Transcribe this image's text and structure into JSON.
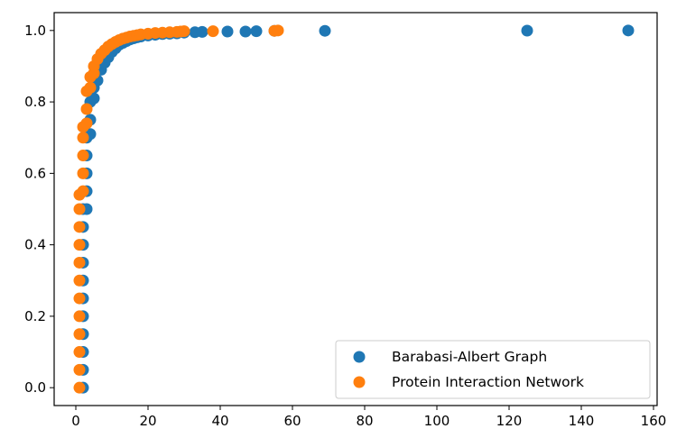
{
  "chart_data": {
    "type": "scatter",
    "title": "",
    "xlabel": "",
    "ylabel": "",
    "xlim": [
      -6,
      161
    ],
    "ylim": [
      -0.05,
      1.05
    ],
    "xticks": [
      0,
      20,
      40,
      60,
      80,
      100,
      120,
      140,
      160
    ],
    "yticks": [
      0.0,
      0.2,
      0.4,
      0.6,
      0.8,
      1.0
    ],
    "grid": false,
    "legend_position": "lower-right",
    "series": [
      {
        "name": "Barabasi-Albert Graph",
        "color": "#1f77b4",
        "points": [
          [
            2,
            0.0
          ],
          [
            2,
            0.05
          ],
          [
            2,
            0.1
          ],
          [
            2,
            0.15
          ],
          [
            2,
            0.2
          ],
          [
            2,
            0.25
          ],
          [
            2,
            0.3
          ],
          [
            2,
            0.35
          ],
          [
            2,
            0.4
          ],
          [
            2,
            0.45
          ],
          [
            2,
            0.5
          ],
          [
            3,
            0.5
          ],
          [
            3,
            0.55
          ],
          [
            3,
            0.6
          ],
          [
            3,
            0.65
          ],
          [
            3,
            0.7
          ],
          [
            4,
            0.71
          ],
          [
            4,
            0.75
          ],
          [
            4,
            0.8
          ],
          [
            5,
            0.81
          ],
          [
            5,
            0.84
          ],
          [
            6,
            0.86
          ],
          [
            7,
            0.89
          ],
          [
            8,
            0.91
          ],
          [
            9,
            0.925
          ],
          [
            10,
            0.94
          ],
          [
            11,
            0.95
          ],
          [
            12,
            0.96
          ],
          [
            13,
            0.965
          ],
          [
            14,
            0.97
          ],
          [
            15,
            0.975
          ],
          [
            16,
            0.978
          ],
          [
            17,
            0.981
          ],
          [
            18,
            0.983
          ],
          [
            20,
            0.986
          ],
          [
            22,
            0.988
          ],
          [
            24,
            0.99
          ],
          [
            26,
            0.991
          ],
          [
            28,
            0.992
          ],
          [
            30,
            0.994
          ],
          [
            33,
            0.995
          ],
          [
            35,
            0.996
          ],
          [
            42,
            0.997
          ],
          [
            47,
            0.997
          ],
          [
            50,
            0.998
          ],
          [
            55,
            0.999
          ],
          [
            69,
            0.999
          ],
          [
            125,
            0.9995
          ],
          [
            153,
            1.0
          ]
        ]
      },
      {
        "name": "Protein Interaction Network",
        "color": "#ff7f0e",
        "points": [
          [
            1,
            0.0
          ],
          [
            1,
            0.05
          ],
          [
            1,
            0.1
          ],
          [
            1,
            0.15
          ],
          [
            1,
            0.2
          ],
          [
            1,
            0.25
          ],
          [
            1,
            0.3
          ],
          [
            1,
            0.35
          ],
          [
            1,
            0.4
          ],
          [
            1,
            0.45
          ],
          [
            1,
            0.5
          ],
          [
            1,
            0.54
          ],
          [
            2,
            0.55
          ],
          [
            2,
            0.6
          ],
          [
            2,
            0.65
          ],
          [
            2,
            0.7
          ],
          [
            2,
            0.73
          ],
          [
            3,
            0.74
          ],
          [
            3,
            0.78
          ],
          [
            3,
            0.83
          ],
          [
            4,
            0.84
          ],
          [
            4,
            0.87
          ],
          [
            5,
            0.88
          ],
          [
            5,
            0.9
          ],
          [
            6,
            0.92
          ],
          [
            7,
            0.935
          ],
          [
            8,
            0.945
          ],
          [
            9,
            0.955
          ],
          [
            10,
            0.962
          ],
          [
            11,
            0.968
          ],
          [
            12,
            0.973
          ],
          [
            13,
            0.977
          ],
          [
            14,
            0.98
          ],
          [
            15,
            0.983
          ],
          [
            16,
            0.985
          ],
          [
            17,
            0.987
          ],
          [
            18,
            0.989
          ],
          [
            20,
            0.991
          ],
          [
            22,
            0.993
          ],
          [
            24,
            0.994
          ],
          [
            26,
            0.995
          ],
          [
            28,
            0.996
          ],
          [
            29,
            0.997
          ],
          [
            30,
            0.998
          ],
          [
            38,
            0.998
          ],
          [
            55,
            0.999
          ],
          [
            56,
            1.0
          ]
        ]
      }
    ]
  }
}
